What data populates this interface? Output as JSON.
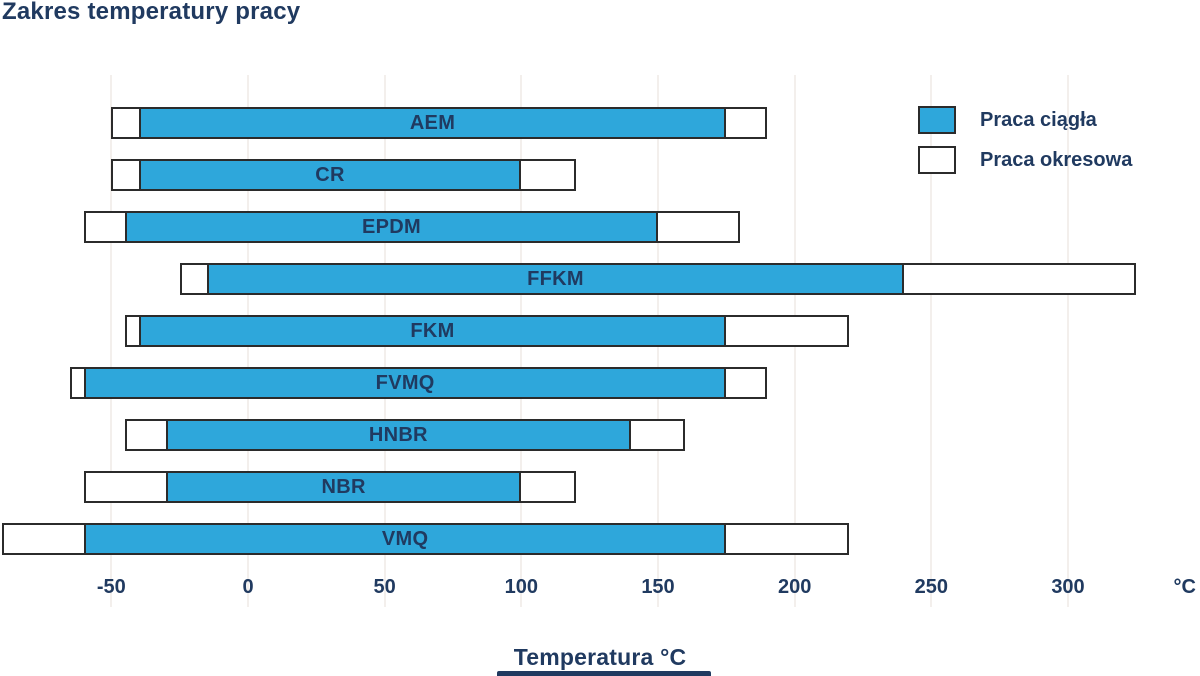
{
  "title": "Zakres temperatury pracy",
  "legend": {
    "continuous_label": "Praca ciągła",
    "intermittent_label": "Praca okresowa"
  },
  "x_axis": {
    "ticks": [
      -50,
      0,
      50,
      100,
      150,
      200,
      250,
      300
    ],
    "unit_suffix": "°C",
    "title": "Temperatura °C"
  },
  "colors": {
    "continuous_fill": "#2ea7db",
    "intermittent_fill": "#ffffff",
    "bar_border": "#2b2b2b",
    "text_navy": "#203a60",
    "gridline": "#f3efec",
    "background": "#ffffff"
  },
  "chart_data": {
    "type": "bar",
    "orientation": "horizontal",
    "title": "Zakres temperatury pracy",
    "xlabel": "Temperatura °C",
    "xlim": [
      -90,
      348
    ],
    "grid": "vertical-faint",
    "legend_position": "top-right",
    "categories": [
      "AEM",
      "CR",
      "EPDM",
      "FFKM",
      "FKM",
      "FVMQ",
      "HNBR",
      "NBR",
      "VMQ"
    ],
    "series": [
      {
        "name": "Praca ciągła",
        "unit": "°C",
        "ranges": [
          [
            -40,
            175
          ],
          [
            -40,
            100
          ],
          [
            -45,
            150
          ],
          [
            -15,
            240
          ],
          [
            -40,
            175
          ],
          [
            -60,
            175
          ],
          [
            -30,
            140
          ],
          [
            -30,
            100
          ],
          [
            -60,
            175
          ]
        ]
      },
      {
        "name": "Praca okresowa",
        "unit": "°C",
        "ranges": [
          [
            -50,
            190
          ],
          [
            -50,
            120
          ],
          [
            -60,
            180
          ],
          [
            -25,
            325
          ],
          [
            -45,
            220
          ],
          [
            -65,
            190
          ],
          [
            -45,
            160
          ],
          [
            -60,
            120
          ],
          [
            -90,
            220
          ]
        ]
      }
    ]
  }
}
